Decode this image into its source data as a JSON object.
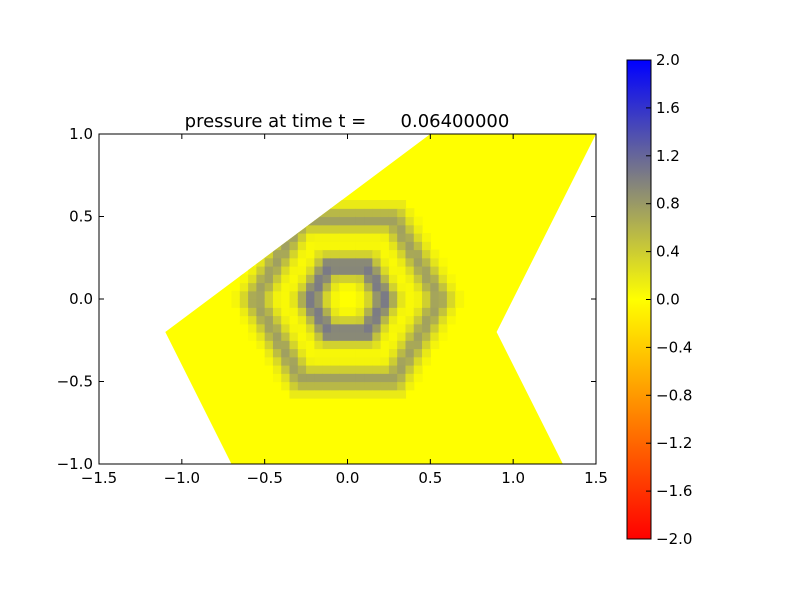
{
  "chart_data": {
    "type": "heatmap",
    "title": "pressure at time t =      0.06400000",
    "xlabel": "",
    "ylabel": "",
    "xlim": [
      -1.5,
      1.5
    ],
    "ylim": [
      -1.0,
      1.0
    ],
    "xticks": [
      -1.5,
      -1.0,
      -0.5,
      0.0,
      0.5,
      1.0,
      1.5
    ],
    "xtick_labels": [
      "−1.5",
      "−1.0",
      "−0.5",
      "0.0",
      "0.5",
      "1.0",
      "1.5"
    ],
    "yticks": [
      1.0,
      0.5,
      0.0,
      -0.5,
      -1.0
    ],
    "ytick_labels": [
      "1.0",
      "0.5",
      "0.0",
      "−0.5",
      "−1.0"
    ],
    "grid": false,
    "domain_polygon": [
      [
        0.5,
        1.0
      ],
      [
        1.5,
        1.0
      ],
      [
        0.9,
        -0.2
      ],
      [
        1.3,
        -1.0
      ],
      [
        -0.7,
        -1.0
      ],
      [
        -1.1,
        -0.2
      ]
    ],
    "pattern": {
      "shape": "hexagonal rings centered at origin",
      "center": [
        0.0,
        0.0
      ],
      "rings": [
        {
          "radius": 0.23,
          "value": 1.05
        },
        {
          "radius": 0.56,
          "value": 0.75
        }
      ],
      "background_value": 0.0,
      "cell_size": 0.05
    },
    "colorbar": {
      "min": -2.0,
      "max": 2.0,
      "ticks": [
        2.0,
        1.6,
        1.2,
        0.8,
        0.4,
        0.0,
        -0.4,
        -0.8,
        -1.2,
        -1.6,
        -2.0
      ],
      "tick_labels": [
        "2.0",
        "1.6",
        "1.2",
        "0.8",
        "0.4",
        "0.0",
        "−0.4",
        "−0.8",
        "−1.2",
        "−1.6",
        "−2.0"
      ],
      "colors": [
        {
          "value": -2.0,
          "color": "#ff0000"
        },
        {
          "value": 0.0,
          "color": "#ffff00"
        },
        {
          "value": 1.0,
          "color": "#808080"
        },
        {
          "value": 2.0,
          "color": "#0000ff"
        }
      ]
    }
  }
}
